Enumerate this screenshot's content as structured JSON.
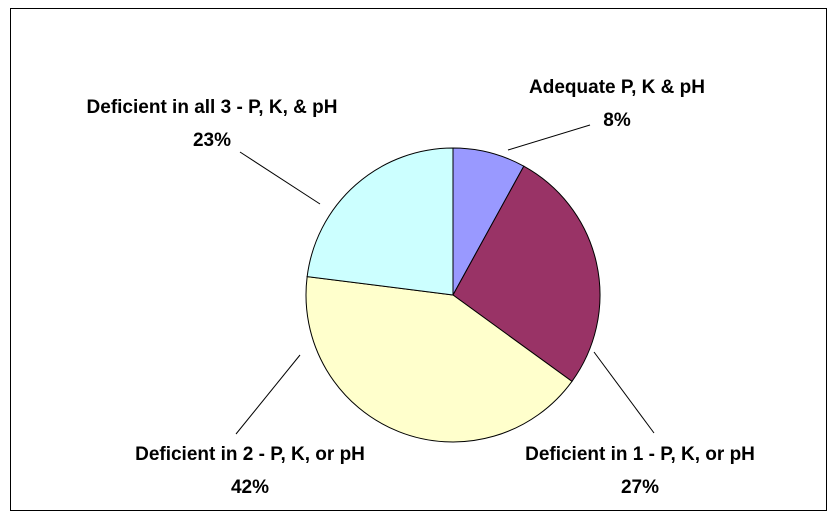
{
  "chart_data": {
    "type": "pie",
    "categories": [
      "Adequate P, K & pH",
      "Deficient in 1 - P, K, or pH",
      "Deficient in 2 - P, K, or pH",
      "Deficient in all 3 - P, K, & pH"
    ],
    "values": [
      8,
      27,
      42,
      23
    ],
    "value_labels": [
      "8%",
      "27%",
      "42%",
      "23%"
    ],
    "colors": [
      "#9999ff",
      "#993366",
      "#ffffcc",
      "#ccffff"
    ]
  }
}
